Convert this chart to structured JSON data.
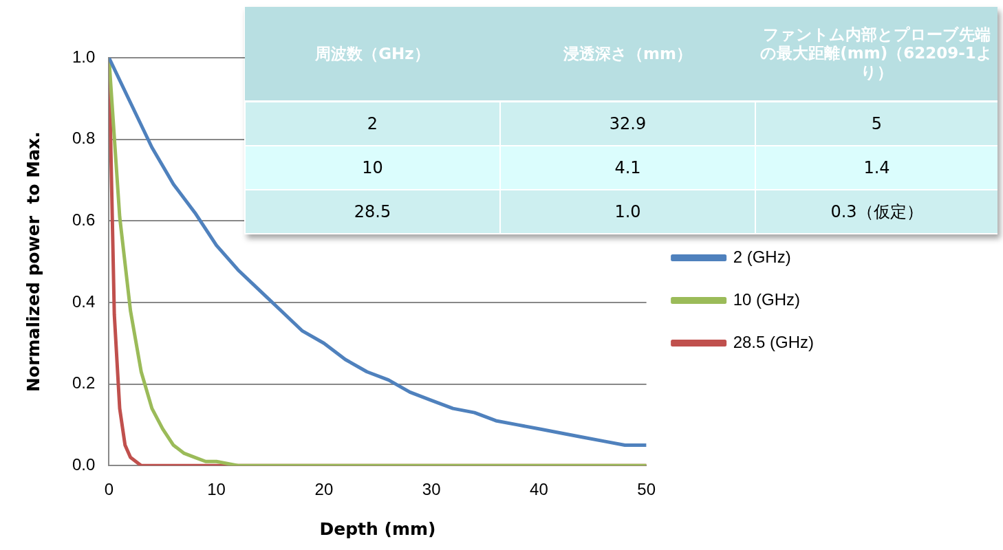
{
  "chart_data": [
    {
      "type": "line",
      "xlabel": "Depth (mm)",
      "ylabel": "Normalized power  to Max.",
      "xlim": [
        0,
        50
      ],
      "xticks": [
        0,
        10,
        20,
        30,
        40,
        50
      ],
      "ylim": [
        0,
        1
      ],
      "yticks": [
        {
          "value": 0,
          "label": "0.0"
        },
        {
          "value": 0.2,
          "label": "0.2"
        },
        {
          "value": 0.4,
          "label": "0.4"
        },
        {
          "value": 0.6,
          "label": "0.6"
        },
        {
          "value": 0.8,
          "label": "0.8"
        },
        {
          "value": 1,
          "label": "1.0"
        }
      ],
      "grid": "y",
      "legend": "right",
      "marker": "none",
      "line_style": "solid",
      "series": [
        {
          "name": "2 (GHz)",
          "color": "#4f81bd",
          "x": [
            0,
            2,
            4,
            6,
            8,
            10,
            12,
            14,
            16,
            18,
            20,
            22,
            24,
            26,
            28,
            30,
            32,
            34,
            36,
            38,
            40,
            42,
            44,
            46,
            48,
            50
          ],
          "values": [
            1.0,
            0.89,
            0.78,
            0.69,
            0.62,
            0.54,
            0.48,
            0.43,
            0.38,
            0.33,
            0.3,
            0.26,
            0.23,
            0.21,
            0.18,
            0.16,
            0.14,
            0.13,
            0.11,
            0.1,
            0.09,
            0.08,
            0.07,
            0.06,
            0.05,
            0.05
          ]
        },
        {
          "name": "10 (GHz)",
          "color": "#9bbb59",
          "x": [
            0,
            1,
            2,
            3,
            4,
            5,
            6,
            7,
            8,
            9,
            10,
            12,
            15,
            20,
            30,
            40,
            50
          ],
          "values": [
            1.0,
            0.61,
            0.38,
            0.23,
            0.14,
            0.09,
            0.05,
            0.03,
            0.02,
            0.01,
            0.01,
            0,
            0,
            0,
            0,
            0,
            0
          ]
        },
        {
          "name": "28.5 (GHz)",
          "color": "#c0504d",
          "x": [
            0,
            0.5,
            1,
            1.5,
            2,
            3,
            4,
            5,
            10,
            20,
            30,
            40,
            50
          ],
          "values": [
            1.0,
            0.37,
            0.14,
            0.05,
            0.02,
            0,
            0,
            0,
            0,
            0,
            0,
            0,
            0
          ]
        }
      ]
    },
    {
      "type": "other",
      "categories": [
        "周波数（GHz）",
        "浸透深さ（mm）",
        "ファントム内部とプローブ先端の最大距離(mm)（62209-1より）"
      ],
      "cell_labels": [
        [
          "2",
          "32.9",
          "5"
        ],
        [
          "10",
          "4.1",
          "1.4"
        ],
        [
          "28.5",
          "1.0",
          "0.3（仮定）"
        ]
      ]
    }
  ]
}
